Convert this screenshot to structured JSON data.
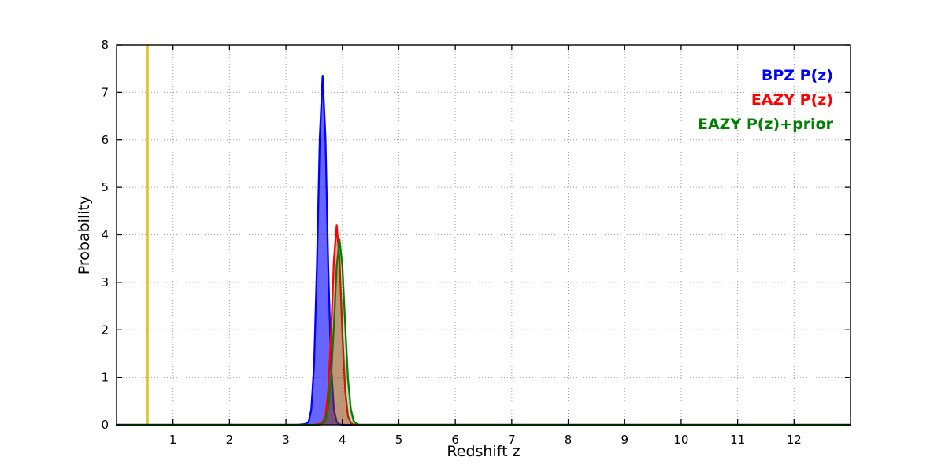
{
  "figure": {
    "background": "#ffffff"
  },
  "chart_data": {
    "type": "line",
    "title": "",
    "xlabel": "Redshift z",
    "ylabel": "Probability",
    "xlim": [
      0,
      13
    ],
    "ylim": [
      0,
      8
    ],
    "xticks": [
      1,
      2,
      3,
      4,
      5,
      6,
      7,
      8,
      9,
      10,
      11,
      12
    ],
    "yticks": [
      0,
      1,
      2,
      3,
      4,
      5,
      6,
      7,
      8
    ],
    "grid": true,
    "grid_style": "dotted",
    "legend_position": "top-right",
    "series": [
      {
        "name": "BPZ P(z)",
        "color": "#0000ff",
        "fill": true,
        "fill_opacity": 0.6,
        "peak_x": 3.65,
        "peak_y": 7.35,
        "x": [
          0,
          3.2,
          3.3,
          3.35,
          3.4,
          3.45,
          3.5,
          3.55,
          3.6,
          3.65,
          3.7,
          3.75,
          3.8,
          3.85,
          3.9,
          3.95,
          4.0,
          13
        ],
        "y": [
          0,
          0,
          0.01,
          0.02,
          0.06,
          0.32,
          1.27,
          3.37,
          6.05,
          7.35,
          6.05,
          3.37,
          1.27,
          0.32,
          0.06,
          0.01,
          0,
          0
        ]
      },
      {
        "name": "EAZY P(z)",
        "color": "#ff0000",
        "fill": true,
        "fill_opacity": 0.38,
        "peak_x": 3.9,
        "peak_y": 4.2,
        "x": [
          0,
          3.5,
          3.6,
          3.65,
          3.7,
          3.75,
          3.8,
          3.85,
          3.9,
          3.95,
          4.0,
          4.05,
          4.1,
          4.15,
          4.2,
          13
        ],
        "y": [
          0,
          0,
          0.02,
          0.06,
          0.18,
          0.72,
          1.92,
          3.46,
          4.2,
          3.46,
          1.92,
          0.72,
          0.18,
          0.04,
          0,
          0
        ]
      },
      {
        "name": "EAZY P(z)+prior",
        "color": "#008000",
        "fill": true,
        "fill_opacity": 0.25,
        "peak_x": 3.95,
        "peak_y": 3.9,
        "x": [
          0,
          3.6,
          3.65,
          3.7,
          3.75,
          3.8,
          3.85,
          3.9,
          3.95,
          4.0,
          4.05,
          4.1,
          4.15,
          4.2,
          4.25,
          4.3,
          13
        ],
        "y": [
          0,
          0,
          0.03,
          0.08,
          0.33,
          0.97,
          2.1,
          3.34,
          3.9,
          3.34,
          2.1,
          0.97,
          0.33,
          0.08,
          0.02,
          0,
          0
        ]
      }
    ],
    "vline": {
      "x": 0.55,
      "y0": 0,
      "y1": 8,
      "color": "#d4c71a"
    }
  }
}
